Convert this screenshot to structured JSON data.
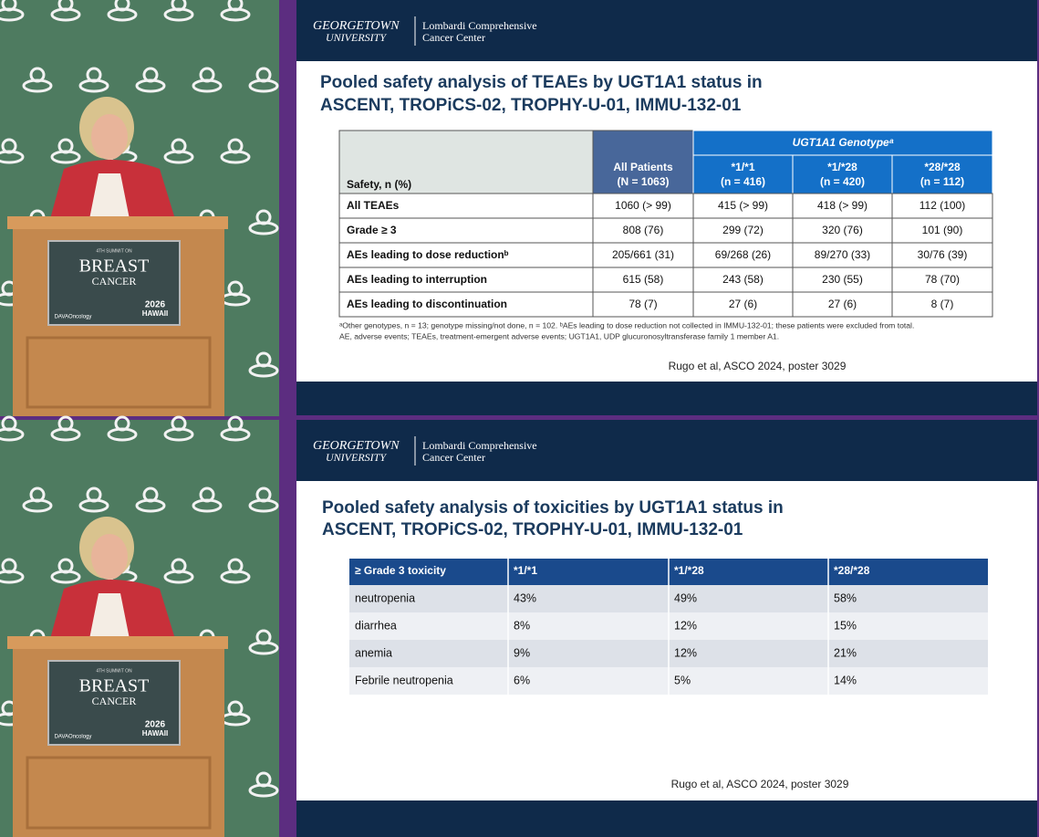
{
  "speaker_panels": [
    {
      "podium": {
        "summit": "4TH SUMMIT ON",
        "title": "BREAST",
        "subtitle": "CANCER",
        "sponsor": "DAVAOncology",
        "event": "2026",
        "location": "HAWAII"
      }
    },
    {
      "podium": {
        "summit": "4TH SUMMIT ON",
        "title": "BREAST",
        "subtitle": "CANCER",
        "sponsor": "DAVAOncology",
        "event": "2026",
        "location": "HAWAII"
      }
    }
  ],
  "slides": [
    {
      "header": {
        "logo_lines": [
          "GEORGETOWN",
          "UNIVERSITY"
        ],
        "center_lines": [
          "Lombardi Comprehensive",
          "Cancer Center"
        ]
      },
      "title_lines": [
        "Pooled safety analysis of TEAEs by UGT1A1 status in",
        "ASCENT, TROPiCS-02, TROPHY-U-01, IMMU-132-01"
      ],
      "table": {
        "group_header": "UGT1A1 Genotypeᵃ",
        "columns": [
          [
            "Safety, n (%)"
          ],
          [
            "All Patients",
            "(N = 1063)"
          ],
          [
            "*1/*1",
            "(n = 416)"
          ],
          [
            "*1/*28",
            "(n = 420)"
          ],
          [
            "*28/*28",
            "(n = 112)"
          ]
        ],
        "rows": [
          [
            "All TEAEs",
            "1060 (> 99)",
            "415 (> 99)",
            "418 (> 99)",
            "112 (100)"
          ],
          [
            "Grade ≥ 3",
            "808 (76)",
            "299 (72)",
            "320 (76)",
            "101 (90)"
          ],
          [
            "AEs leading to dose reductionᵇ",
            "205/661 (31)",
            "69/268 (26)",
            "89/270 (33)",
            "30/76 (39)"
          ],
          [
            "AEs leading to interruption",
            "615 (58)",
            "243 (58)",
            "230 (55)",
            "78 (70)"
          ],
          [
            "AEs leading to discontinuation",
            "78 (7)",
            "27 (6)",
            "27 (6)",
            "8 (7)"
          ]
        ]
      },
      "footnotes": [
        "ᵃOther genotypes, n = 13; genotype missing/not done, n = 102. ᵇAEs leading to dose reduction not collected in IMMU-132-01; these patients were excluded from total.",
        "AE, adverse events; TEAEs, treatment-emergent adverse events; UGT1A1, UDP glucuronosyltransferase family 1 member A1."
      ],
      "citation": "Rugo et al, ASCO 2024, poster 3029"
    },
    {
      "header": {
        "logo_lines": [
          "GEORGETOWN",
          "UNIVERSITY"
        ],
        "center_lines": [
          "Lombardi Comprehensive",
          "Cancer Center"
        ]
      },
      "title_lines": [
        "Pooled safety analysis of toxicities by UGT1A1 status in",
        "ASCENT, TROPiCS-02, TROPHY-U-01, IMMU-132-01"
      ],
      "table": {
        "columns": [
          "≥ Grade 3 toxicity",
          "*1/*1",
          "*1/*28",
          "*28/*28"
        ],
        "rows": [
          [
            "neutropenia",
            "43%",
            "49%",
            "58%"
          ],
          [
            "diarrhea",
            "8%",
            "12%",
            "15%"
          ],
          [
            "anemia",
            "9%",
            "12%",
            "21%"
          ],
          [
            "Febrile neutropenia",
            "6%",
            "5%",
            "14%"
          ]
        ]
      },
      "citation": "Rugo et al, ASCO 2024, poster 3029"
    }
  ]
}
